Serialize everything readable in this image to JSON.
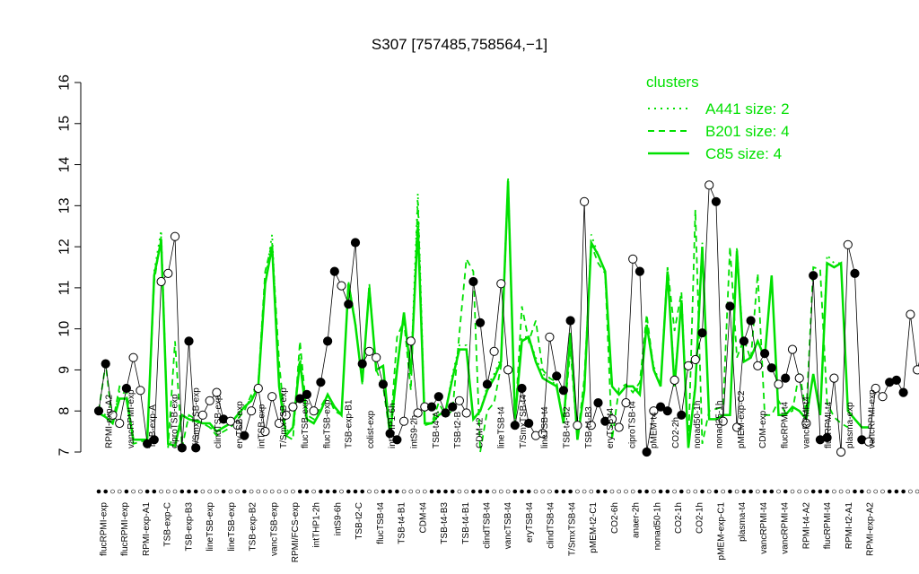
{
  "chart_data": {
    "type": "line",
    "title": "S307 [757485,758564,−1]",
    "xlabel": "",
    "ylabel": "",
    "ylim": [
      7,
      16
    ],
    "yticks": [
      7,
      8,
      9,
      10,
      11,
      12,
      13,
      14,
      15,
      16
    ],
    "legend": {
      "title": "clusters",
      "placement": "top-right",
      "entries": [
        {
          "label": "A441 size: 2",
          "style": "dotted"
        },
        {
          "label": "B201 size: 4",
          "style": "dashed"
        },
        {
          "label": "C85 size: 4",
          "style": "solid"
        }
      ]
    },
    "colors": {
      "cluster_line": "#00e000",
      "sample_line": "#000000"
    },
    "bottom_labels": [
      "flucRPMI-exp",
      "flucRPMI-exp",
      "RPMI-exp-A1",
      "TSB-exp-C",
      "TSB-exp-B3",
      "lineTSB-exp",
      "lineTSB-exp",
      "TSB-exp-B2",
      "vancTSB-exp",
      "RPMI/FCS-exp",
      "intTHP1-2h",
      "intS9-6h",
      "TSB-t2-C",
      "flucTSB-t4",
      "TSB-t4-B1",
      "CDM-t4",
      "TSB-t4-B3",
      "TSB-t4-B1",
      "clindTSB-t4",
      "vancTSB-t4",
      "eryTSB-t4",
      "clindTSB-t4",
      "T/SmxTSB-t4",
      "pMEM-t2-C1",
      "CO2-6h",
      "anaer-2h",
      "nonad50-1h",
      "CO2-1h",
      "CO2-1h",
      "pMEM-exp-C1",
      "plasma-t4",
      "vancRPMI-t4",
      "vancRPMI-t4",
      "RPMI-t4-A2",
      "flucRPMI-t4",
      "RPMI-t2-A1",
      "RPMI-exp-A2"
    ],
    "top_labels": [
      "RPMI-exp-A2",
      "vancRPMI-exp",
      "TSB-exp-A",
      "ciproTSB-exp",
      "T/SmxTSB-exp",
      "clindTSB-exp",
      "eryTSB-exp",
      "intTSB-exp",
      "T/SmxTSB-exp",
      "flucTSB-exp",
      "flucTSB-exp",
      "TSB-exp-B1",
      "colist-exp",
      "intTHP1-6h",
      "intS9-2h",
      "TSB-t4-A",
      "TSB-t2-B",
      "CDM-t2",
      "lineTSB-t4",
      "T/SmxTSB-t4",
      "lineTSB-t4",
      "TSB-t4-B2",
      "TSB-t4-B3",
      "eryTSB-t4",
      "ciproTSB-t4",
      "pMEM-t4",
      "CO2-2h",
      "nonad50-1h",
      "nonad25-1h",
      "pMEM-exp-C2",
      "CDM-exp",
      "flucRPMI-t4",
      "vancRPMI-t4",
      "flucRPMI-t4",
      "plasma-exp",
      "vancRPMI-exp"
    ],
    "series": [
      {
        "name": "C85 size: 4",
        "style": "solid",
        "values": [
          7.95,
          7.85,
          7.7,
          8.3,
          8.3,
          7.3,
          7.3,
          7.3,
          11.3,
          12.15,
          7.2,
          7.15,
          7.9,
          7.8,
          7.75,
          7.7,
          7.7,
          7.5,
          7.6,
          7.7,
          7.9,
          8.1,
          8.25,
          8.6,
          11.1,
          12.0,
          8.6,
          7.4,
          7.6,
          9.2,
          7.8,
          7.7,
          8.0,
          8.4,
          8.1,
          7.9,
          11.1,
          10.1,
          8.7,
          11.0,
          9.0,
          9.1,
          7.4,
          9.0,
          10.4,
          8.9,
          12.5,
          7.7,
          7.7,
          7.9,
          8.0,
          8.8,
          9.5,
          9.5,
          7.8,
          8.0,
          8.5,
          8.8,
          9.2,
          13.6,
          7.8,
          9.7,
          9.8,
          9.2,
          8.8,
          8.7,
          8.6,
          7.7,
          9.9,
          7.3,
          8.5,
          12.1,
          11.8,
          11.4,
          8.6,
          8.4,
          8.6,
          8.6,
          8.4,
          10.1,
          9.0,
          8.6,
          11.4,
          8.6,
          10.7,
          7.1,
          8.6,
          12.0,
          7.8,
          7.8,
          7.9,
          7.9,
          11.9,
          9.2,
          9.3,
          9.7,
          9.3,
          11.3,
          7.9,
          7.9,
          8.1,
          8.0,
          7.8,
          8.9,
          7.9,
          11.6,
          11.5,
          11.6,
          8.0,
          7.8,
          7.6,
          7.6
        ]
      },
      {
        "name": "B201 size: 4",
        "style": "dashed",
        "values": [
          8.0,
          9.15,
          7.7,
          8.6,
          8.5,
          7.2,
          7.25,
          7.3,
          11.15,
          12.25,
          7.1,
          9.7,
          7.1,
          7.9,
          7.8,
          7.7,
          7.6,
          7.4,
          7.5,
          7.6,
          7.8,
          8.0,
          8.4,
          8.7,
          11.4,
          12.1,
          9.2,
          7.4,
          7.3,
          9.7,
          7.9,
          7.8,
          8.1,
          8.4,
          8.0,
          7.9,
          11.15,
          10.15,
          8.65,
          11.1,
          9.0,
          8.6,
          7.4,
          9.8,
          10.2,
          8.5,
          13.1,
          7.65,
          7.7,
          8.2,
          7.9,
          8.0,
          9.9,
          11.7,
          11.4,
          7.0,
          8.0,
          8.2,
          9.1,
          13.5,
          7.7,
          10.55,
          9.7,
          10.2,
          9.0,
          8.8,
          8.7,
          7.7,
          9.5,
          7.3,
          8.8,
          12.05,
          11.6,
          11.35,
          7.3,
          8.55,
          8.65,
          8.45,
          8.7,
          10.35,
          9.0,
          8.65,
          11.5,
          9.95,
          10.9,
          7.1,
          12.9,
          7.2,
          8.0,
          8.05,
          8.1,
          12.0,
          9.3,
          9.75,
          9.25,
          11.35,
          7.9,
          7.9,
          8.25,
          7.95,
          8.0,
          8.95,
          7.95,
          11.5,
          11.45,
          8.2,
          7.85,
          7.7,
          7.6
        ]
      },
      {
        "name": "A441 size: 2",
        "style": "dotted",
        "values": [
          8.0,
          7.9,
          7.7,
          8.5,
          8.4,
          7.3,
          7.3,
          7.3,
          11.4,
          12.4,
          7.2,
          7.3,
          7.9,
          7.8,
          7.75,
          7.7,
          7.6,
          7.5,
          7.6,
          7.7,
          7.9,
          8.1,
          8.3,
          8.7,
          11.2,
          12.3,
          8.7,
          7.5,
          7.6,
          9.4,
          7.8,
          7.7,
          8.0,
          8.4,
          8.1,
          7.9,
          11.1,
          10.1,
          8.7,
          11.0,
          9.0,
          9.1,
          7.5,
          9.1,
          10.4,
          8.9,
          13.3,
          7.7,
          7.7,
          8.0,
          8.0,
          8.9,
          9.6,
          9.6,
          7.8,
          8.0,
          8.6,
          8.9,
          9.3,
          13.7,
          7.8,
          9.8,
          9.8,
          9.3,
          8.9,
          8.8,
          8.6,
          7.7,
          9.9,
          7.3,
          8.5,
          12.3,
          11.8,
          11.4,
          8.6,
          8.4,
          8.6,
          8.6,
          8.5,
          10.1,
          9.1,
          8.6,
          11.5,
          8.7,
          10.7,
          7.1,
          8.7,
          12.1,
          7.8,
          7.8,
          7.9,
          7.9,
          12.0,
          9.3,
          9.3,
          9.7,
          9.3,
          11.3,
          7.9,
          7.9,
          8.1,
          8.0,
          7.8,
          8.9,
          7.9,
          11.8,
          11.6,
          11.6,
          8.0,
          7.8,
          7.6,
          7.6
        ]
      }
    ],
    "markers": [
      {
        "x": 0,
        "y": 8.0,
        "fill": "filled"
      },
      {
        "x": 1,
        "y": 9.15,
        "fill": "filled"
      },
      {
        "x": 2,
        "y": 7.9,
        "fill": "open"
      },
      {
        "x": 3,
        "y": 7.7,
        "fill": "open"
      },
      {
        "x": 4,
        "y": 8.55,
        "fill": "filled"
      },
      {
        "x": 5,
        "y": 9.3,
        "fill": "open"
      },
      {
        "x": 6,
        "y": 8.5,
        "fill": "open"
      },
      {
        "x": 7,
        "y": 7.2,
        "fill": "filled"
      },
      {
        "x": 8,
        "y": 7.3,
        "fill": "filled"
      },
      {
        "x": 9,
        "y": 11.15,
        "fill": "open"
      },
      {
        "x": 10,
        "y": 11.35,
        "fill": "open"
      },
      {
        "x": 11,
        "y": 12.25,
        "fill": "open"
      },
      {
        "x": 12,
        "y": 7.1,
        "fill": "filled"
      },
      {
        "x": 13,
        "y": 9.7,
        "fill": "filled"
      },
      {
        "x": 14,
        "y": 7.1,
        "fill": "filled"
      },
      {
        "x": 15,
        "y": 7.9,
        "fill": "open"
      },
      {
        "x": 16,
        "y": 8.25,
        "fill": "open"
      },
      {
        "x": 17,
        "y": 8.45,
        "fill": "open"
      },
      {
        "x": 18,
        "y": 7.8,
        "fill": "filled"
      },
      {
        "x": 19,
        "y": 7.75,
        "fill": "open"
      },
      {
        "x": 20,
        "y": 7.65,
        "fill": "open"
      },
      {
        "x": 21,
        "y": 7.4,
        "fill": "filled"
      },
      {
        "x": 22,
        "y": 8.0,
        "fill": "open"
      },
      {
        "x": 23,
        "y": 8.55,
        "fill": "open"
      },
      {
        "x": 24,
        "y": 7.5,
        "fill": "open"
      },
      {
        "x": 25,
        "y": 8.35,
        "fill": "open"
      },
      {
        "x": 26,
        "y": 7.7,
        "fill": "open"
      },
      {
        "x": 27,
        "y": 7.9,
        "fill": "open"
      },
      {
        "x": 28,
        "y": 8.1,
        "fill": "open"
      },
      {
        "x": 29,
        "y": 8.3,
        "fill": "filled"
      },
      {
        "x": 30,
        "y": 8.4,
        "fill": "filled"
      },
      {
        "x": 31,
        "y": 8.0,
        "fill": "open"
      },
      {
        "x": 32,
        "y": 8.7,
        "fill": "filled"
      },
      {
        "x": 33,
        "y": 9.7,
        "fill": "filled"
      },
      {
        "x": 34,
        "y": 11.4,
        "fill": "filled"
      },
      {
        "x": 35,
        "y": 11.05,
        "fill": "open"
      },
      {
        "x": 36,
        "y": 10.6,
        "fill": "filled"
      },
      {
        "x": 37,
        "y": 12.1,
        "fill": "filled"
      },
      {
        "x": 38,
        "y": 9.15,
        "fill": "filled"
      },
      {
        "x": 39,
        "y": 9.45,
        "fill": "open"
      },
      {
        "x": 40,
        "y": 9.3,
        "fill": "open"
      },
      {
        "x": 41,
        "y": 8.65,
        "fill": "filled"
      },
      {
        "x": 42,
        "y": 7.45,
        "fill": "filled"
      },
      {
        "x": 43,
        "y": 7.3,
        "fill": "filled"
      },
      {
        "x": 44,
        "y": 7.75,
        "fill": "open"
      },
      {
        "x": 45,
        "y": 9.7,
        "fill": "open"
      },
      {
        "x": 46,
        "y": 7.95,
        "fill": "open"
      },
      {
        "x": 47,
        "y": 8.1,
        "fill": "open"
      },
      {
        "x": 48,
        "y": 8.1,
        "fill": "filled"
      },
      {
        "x": 49,
        "y": 8.35,
        "fill": "filled"
      },
      {
        "x": 50,
        "y": 7.95,
        "fill": "filled"
      },
      {
        "x": 51,
        "y": 8.1,
        "fill": "filled"
      },
      {
        "x": 52,
        "y": 8.25,
        "fill": "open"
      },
      {
        "x": 53,
        "y": 7.95,
        "fill": "open"
      },
      {
        "x": 54,
        "y": 11.15,
        "fill": "filled"
      },
      {
        "x": 55,
        "y": 10.15,
        "fill": "filled"
      },
      {
        "x": 56,
        "y": 8.65,
        "fill": "filled"
      },
      {
        "x": 57,
        "y": 9.45,
        "fill": "open"
      },
      {
        "x": 58,
        "y": 11.1,
        "fill": "open"
      },
      {
        "x": 59,
        "y": 9.0,
        "fill": "open"
      },
      {
        "x": 60,
        "y": 7.65,
        "fill": "filled"
      },
      {
        "x": 61,
        "y": 8.55,
        "fill": "filled"
      },
      {
        "x": 62,
        "y": 7.7,
        "fill": "filled"
      },
      {
        "x": 63,
        "y": 7.4,
        "fill": "open"
      },
      {
        "x": 64,
        "y": 7.45,
        "fill": "open"
      },
      {
        "x": 65,
        "y": 9.8,
        "fill": "open"
      },
      {
        "x": 66,
        "y": 8.85,
        "fill": "filled"
      },
      {
        "x": 67,
        "y": 8.5,
        "fill": "filled"
      },
      {
        "x": 68,
        "y": 10.2,
        "fill": "filled"
      },
      {
        "x": 69,
        "y": 7.65,
        "fill": "open"
      },
      {
        "x": 70,
        "y": 13.1,
        "fill": "open"
      },
      {
        "x": 71,
        "y": 7.65,
        "fill": "open"
      },
      {
        "x": 72,
        "y": 8.2,
        "fill": "filled"
      },
      {
        "x": 73,
        "y": 7.75,
        "fill": "filled"
      },
      {
        "x": 74,
        "y": 7.8,
        "fill": "open"
      },
      {
        "x": 75,
        "y": 7.6,
        "fill": "open"
      },
      {
        "x": 76,
        "y": 8.2,
        "fill": "open"
      },
      {
        "x": 77,
        "y": 11.7,
        "fill": "open"
      },
      {
        "x": 78,
        "y": 11.4,
        "fill": "filled"
      },
      {
        "x": 79,
        "y": 7.0,
        "fill": "filled"
      },
      {
        "x": 80,
        "y": 8.0,
        "fill": "open"
      },
      {
        "x": 81,
        "y": 8.1,
        "fill": "filled"
      },
      {
        "x": 82,
        "y": 8.0,
        "fill": "filled"
      },
      {
        "x": 83,
        "y": 8.75,
        "fill": "open"
      },
      {
        "x": 84,
        "y": 7.9,
        "fill": "filled"
      },
      {
        "x": 85,
        "y": 9.1,
        "fill": "open"
      },
      {
        "x": 86,
        "y": 9.25,
        "fill": "open"
      },
      {
        "x": 87,
        "y": 9.9,
        "fill": "filled"
      },
      {
        "x": 88,
        "y": 13.5,
        "fill": "open"
      },
      {
        "x": 89,
        "y": 13.1,
        "fill": "filled"
      },
      {
        "x": 90,
        "y": 7.75,
        "fill": "open"
      },
      {
        "x": 91,
        "y": 10.55,
        "fill": "filled"
      },
      {
        "x": 92,
        "y": 7.6,
        "fill": "open"
      },
      {
        "x": 93,
        "y": 9.7,
        "fill": "filled"
      },
      {
        "x": 94,
        "y": 10.2,
        "fill": "filled"
      },
      {
        "x": 95,
        "y": 9.1,
        "fill": "open"
      },
      {
        "x": 96,
        "y": 9.4,
        "fill": "filled"
      },
      {
        "x": 97,
        "y": 9.05,
        "fill": "filled"
      },
      {
        "x": 98,
        "y": 8.65,
        "fill": "open"
      },
      {
        "x": 99,
        "y": 8.8,
        "fill": "filled"
      },
      {
        "x": 100,
        "y": 9.5,
        "fill": "open"
      },
      {
        "x": 101,
        "y": 8.8,
        "fill": "open"
      },
      {
        "x": 102,
        "y": 7.7,
        "fill": "open"
      },
      {
        "x": 103,
        "y": 11.3,
        "fill": "filled"
      },
      {
        "x": 104,
        "y": 7.3,
        "fill": "filled"
      },
      {
        "x": 105,
        "y": 7.35,
        "fill": "filled"
      },
      {
        "x": 106,
        "y": 8.8,
        "fill": "open"
      },
      {
        "x": 107,
        "y": 7.0,
        "fill": "open"
      },
      {
        "x": 108,
        "y": 12.05,
        "fill": "open"
      },
      {
        "x": 109,
        "y": 11.35,
        "fill": "filled"
      },
      {
        "x": 110,
        "y": 7.3,
        "fill": "filled"
      },
      {
        "x": 111,
        "y": 7.25,
        "fill": "open"
      },
      {
        "x": 112,
        "y": 8.55,
        "fill": "open"
      },
      {
        "x": 113,
        "y": 8.35,
        "fill": "open"
      },
      {
        "x": 114,
        "y": 8.7,
        "fill": "filled"
      },
      {
        "x": 115,
        "y": 8.75,
        "fill": "filled"
      },
      {
        "x": 116,
        "y": 8.45,
        "fill": "filled"
      },
      {
        "x": 117,
        "y": 10.35,
        "fill": "open"
      },
      {
        "x": 118,
        "y": 9.0,
        "fill": "open"
      },
      {
        "x": 119,
        "y": 9.65,
        "fill": "filled"
      },
      {
        "x": 120,
        "y": 8.65,
        "fill": "filled"
      },
      {
        "x": 121,
        "y": 11.5,
        "fill": "open"
      },
      {
        "x": 122,
        "y": 9.95,
        "fill": "open"
      },
      {
        "x": 123,
        "y": 10.9,
        "fill": "open"
      },
      {
        "x": 124,
        "y": 7.1,
        "fill": "filled"
      },
      {
        "x": 125,
        "y": 12.9,
        "fill": "open"
      },
      {
        "x": 126,
        "y": 7.2,
        "fill": "open"
      },
      {
        "x": 127,
        "y": 7.5,
        "fill": "open"
      },
      {
        "x": 128,
        "y": 7.2,
        "fill": "filled"
      },
      {
        "x": 129,
        "y": 8.0,
        "fill": "filled"
      },
      {
        "x": 130,
        "y": 8.05,
        "fill": "filled"
      },
      {
        "x": 131,
        "y": 8.1,
        "fill": "open"
      },
      {
        "x": 132,
        "y": 12.0,
        "fill": "open"
      },
      {
        "x": 133,
        "y": 9.3,
        "fill": "open"
      },
      {
        "x": 134,
        "y": 9.75,
        "fill": "filled"
      },
      {
        "x": 135,
        "y": 9.25,
        "fill": "filled"
      },
      {
        "x": 136,
        "y": 11.35,
        "fill": "filled"
      },
      {
        "x": 137,
        "y": 7.9,
        "fill": "open"
      },
      {
        "x": 138,
        "y": 7.95,
        "fill": "open"
      },
      {
        "x": 139,
        "y": 8.25,
        "fill": "filled"
      },
      {
        "x": 140,
        "y": 7.9,
        "fill": "filled"
      },
      {
        "x": 141,
        "y": 8.0,
        "fill": "filled"
      },
      {
        "x": 142,
        "y": 8.95,
        "fill": "filled"
      },
      {
        "x": 143,
        "y": 7.9,
        "fill": "open"
      },
      {
        "x": 144,
        "y": 11.5,
        "fill": "filled"
      },
      {
        "x": 145,
        "y": 11.45,
        "fill": "open"
      },
      {
        "x": 146,
        "y": 8.2,
        "fill": "open"
      },
      {
        "x": 147,
        "y": 7.85,
        "fill": "open"
      },
      {
        "x": 148,
        "y": 7.7,
        "fill": "open"
      },
      {
        "x": 149,
        "y": 7.65,
        "fill": "open"
      }
    ]
  }
}
